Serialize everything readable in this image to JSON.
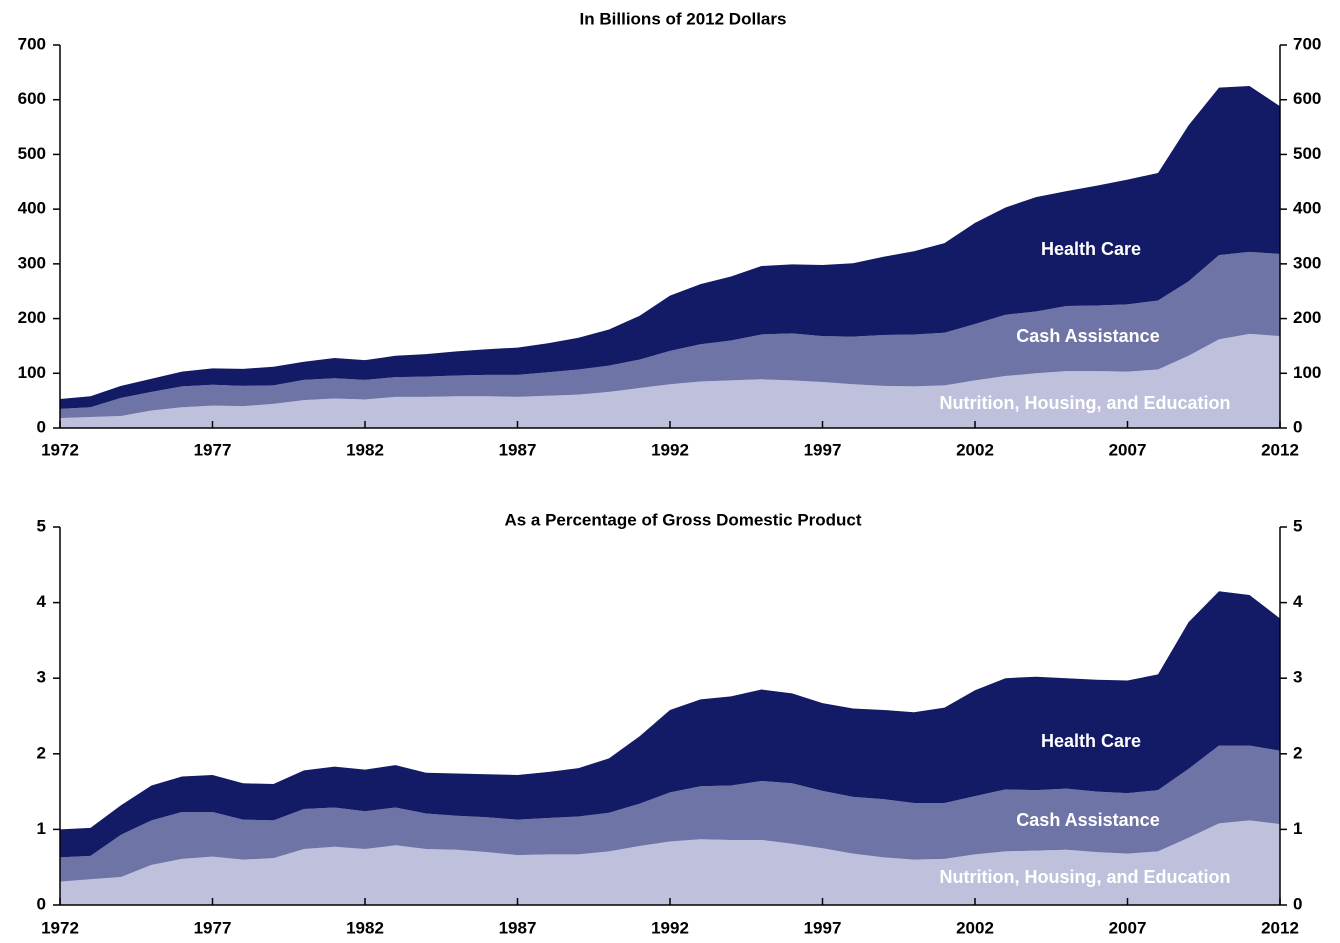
{
  "chart_data": [
    {
      "type": "area",
      "stacked": true,
      "title": "In Billions of 2012 Dollars",
      "x": [
        1972,
        1973,
        1974,
        1975,
        1976,
        1977,
        1978,
        1979,
        1980,
        1981,
        1982,
        1983,
        1984,
        1985,
        1986,
        1987,
        1988,
        1989,
        1990,
        1991,
        1992,
        1993,
        1994,
        1995,
        1996,
        1997,
        1998,
        1999,
        2000,
        2001,
        2002,
        2003,
        2004,
        2005,
        2006,
        2007,
        2008,
        2009,
        2010,
        2011,
        2012
      ],
      "xlim": [
        1972,
        2012
      ],
      "xticks": [
        1972,
        1977,
        1982,
        1987,
        1992,
        1997,
        2002,
        2007,
        2012
      ],
      "ylim": [
        0,
        700
      ],
      "yticks": [
        0,
        100,
        200,
        300,
        400,
        500,
        600,
        700
      ],
      "series": [
        {
          "name": "Nutrition, Housing, and Education",
          "color": "#bfc1dc",
          "values": [
            18,
            20,
            22,
            32,
            38,
            41,
            40,
            44,
            51,
            54,
            52,
            57,
            57,
            58,
            58,
            57,
            59,
            61,
            66,
            73,
            80,
            85,
            87,
            89,
            87,
            84,
            80,
            77,
            76,
            78,
            87,
            95,
            100,
            104,
            104,
            103,
            107,
            132,
            162,
            172,
            168
          ]
        },
        {
          "name": "Cash Assistance",
          "color": "#6f74a6",
          "values": [
            17,
            18,
            33,
            34,
            38,
            38,
            37,
            34,
            37,
            37,
            36,
            36,
            37,
            38,
            39,
            40,
            43,
            46,
            48,
            52,
            61,
            68,
            73,
            82,
            86,
            84,
            87,
            93,
            95,
            96,
            103,
            112,
            113,
            119,
            120,
            123,
            126,
            136,
            154,
            150,
            150
          ]
        },
        {
          "name": "Health Care",
          "color": "#131a66",
          "values": [
            18,
            20,
            22,
            24,
            27,
            30,
            31,
            34,
            33,
            37,
            36,
            39,
            41,
            44,
            47,
            50,
            53,
            58,
            66,
            80,
            101,
            110,
            117,
            125,
            126,
            130,
            134,
            143,
            152,
            164,
            185,
            196,
            209,
            210,
            219,
            228,
            233,
            285,
            306,
            303,
            270
          ]
        }
      ]
    },
    {
      "type": "area",
      "stacked": true,
      "title": "As a Percentage of Gross Domestic Product",
      "x": [
        1972,
        1973,
        1974,
        1975,
        1976,
        1977,
        1978,
        1979,
        1980,
        1981,
        1982,
        1983,
        1984,
        1985,
        1986,
        1987,
        1988,
        1989,
        1990,
        1991,
        1992,
        1993,
        1994,
        1995,
        1996,
        1997,
        1998,
        1999,
        2000,
        2001,
        2002,
        2003,
        2004,
        2005,
        2006,
        2007,
        2008,
        2009,
        2010,
        2011,
        2012
      ],
      "xlim": [
        1972,
        2012
      ],
      "xticks": [
        1972,
        1977,
        1982,
        1987,
        1992,
        1997,
        2002,
        2007,
        2012
      ],
      "ylim": [
        0,
        5
      ],
      "yticks": [
        0,
        1,
        2,
        3,
        4,
        5
      ],
      "series": [
        {
          "name": "Nutrition, Housing, and Education",
          "color": "#bfc1dc",
          "values": [
            0.31,
            0.34,
            0.37,
            0.53,
            0.61,
            0.64,
            0.6,
            0.62,
            0.74,
            0.77,
            0.74,
            0.79,
            0.74,
            0.73,
            0.7,
            0.66,
            0.67,
            0.67,
            0.71,
            0.78,
            0.84,
            0.87,
            0.86,
            0.86,
            0.81,
            0.75,
            0.68,
            0.63,
            0.6,
            0.61,
            0.67,
            0.71,
            0.72,
            0.73,
            0.7,
            0.68,
            0.71,
            0.89,
            1.08,
            1.12,
            1.07
          ]
        },
        {
          "name": "Cash Assistance",
          "color": "#6f74a6",
          "values": [
            0.32,
            0.31,
            0.56,
            0.59,
            0.62,
            0.59,
            0.53,
            0.5,
            0.53,
            0.52,
            0.5,
            0.5,
            0.47,
            0.45,
            0.46,
            0.47,
            0.48,
            0.5,
            0.51,
            0.56,
            0.65,
            0.7,
            0.72,
            0.78,
            0.8,
            0.76,
            0.75,
            0.77,
            0.75,
            0.74,
            0.77,
            0.82,
            0.8,
            0.81,
            0.8,
            0.8,
            0.81,
            0.91,
            1.03,
            0.99,
            0.97
          ]
        },
        {
          "name": "Health Care",
          "color": "#131a66",
          "values": [
            0.37,
            0.37,
            0.39,
            0.46,
            0.47,
            0.49,
            0.48,
            0.48,
            0.51,
            0.54,
            0.55,
            0.56,
            0.54,
            0.56,
            0.57,
            0.59,
            0.61,
            0.64,
            0.72,
            0.89,
            1.09,
            1.15,
            1.18,
            1.21,
            1.19,
            1.16,
            1.17,
            1.18,
            1.2,
            1.26,
            1.4,
            1.47,
            1.5,
            1.46,
            1.48,
            1.49,
            1.53,
            1.94,
            2.04,
            1.99,
            1.75
          ]
        }
      ]
    }
  ]
}
